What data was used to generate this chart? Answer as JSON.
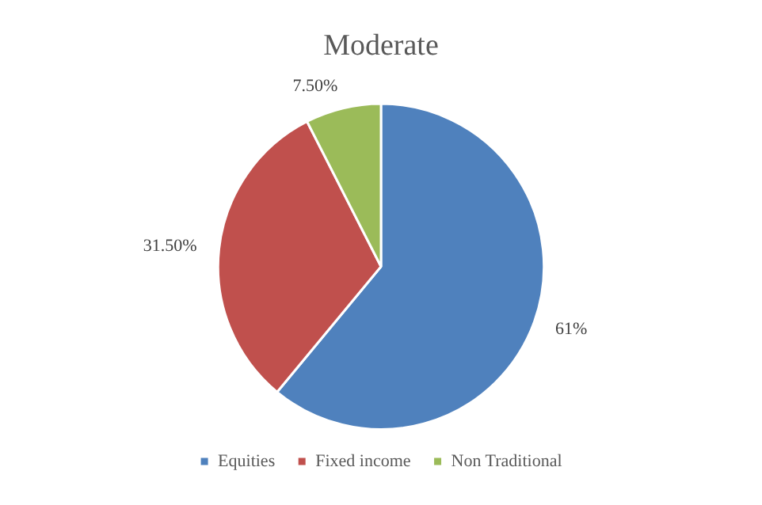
{
  "chart_data": {
    "type": "pie",
    "title": "Moderate",
    "categories": [
      "Equities",
      "Fixed income",
      "Non Traditional"
    ],
    "values": [
      61,
      31.5,
      7.5
    ],
    "value_labels": [
      "61%",
      "31.50%",
      "7.50%"
    ],
    "colors": [
      "#4f81bd",
      "#c0504d",
      "#9bbb59"
    ],
    "legend": "bottom"
  }
}
